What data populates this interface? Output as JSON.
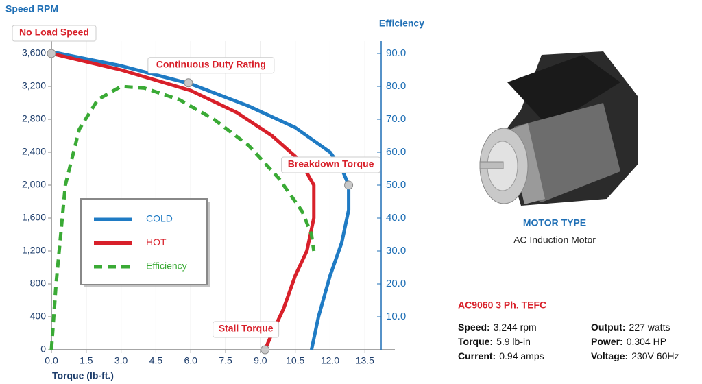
{
  "chart_data": {
    "type": "line",
    "y_axis_label": "Speed RPM",
    "y2_axis_label": "Efficiency",
    "x_axis_label": "Torque (lb-ft.)",
    "xlim": [
      0,
      14.2
    ],
    "xticks": [
      {
        "value": 0,
        "label": "0.0"
      },
      1.5,
      {
        "value": 3,
        "label": "3.0"
      },
      4.5,
      {
        "value": 6,
        "label": "6.0"
      },
      7.5,
      {
        "value": 9,
        "label": "9.0"
      },
      10.5,
      {
        "value": 12,
        "label": "12.0"
      },
      13.5
    ],
    "ylim": [
      0,
      3600
    ],
    "yticks": [
      0,
      400,
      800,
      {
        "value": 1200,
        "label": "1,200"
      },
      {
        "value": 1600,
        "label": "1,600"
      },
      {
        "value": 2000,
        "label": "2,000"
      },
      {
        "value": 2400,
        "label": "2,400"
      },
      {
        "value": 2800,
        "label": "2,800"
      },
      {
        "value": 3200,
        "label": "3,200"
      },
      {
        "value": 3600,
        "label": "3,600"
      }
    ],
    "y2lim": [
      0,
      90
    ],
    "y2ticks": [
      {
        "value": 10,
        "label": "10.0"
      },
      {
        "value": 20,
        "label": "20.0"
      },
      {
        "value": 30,
        "label": "30.0"
      },
      {
        "value": 40,
        "label": "40.0"
      },
      {
        "value": 50,
        "label": "50.0"
      },
      {
        "value": 60,
        "label": "60.0"
      },
      {
        "value": 70,
        "label": "70.0"
      },
      {
        "value": 80,
        "label": "80.0"
      },
      {
        "value": 90,
        "label": "90.0"
      }
    ],
    "grid": true,
    "series": [
      {
        "name": "COLD",
        "color": "#1f7bc4",
        "line_style": "solid",
        "x": [
          0,
          3,
          6,
          8.5,
          10.5,
          12,
          12.5,
          12.8,
          12.8,
          12.5,
          12,
          11.5,
          11.2
        ],
        "values": [
          3620,
          3450,
          3230,
          2960,
          2700,
          2400,
          2200,
          2000,
          1700,
          1300,
          900,
          400,
          0
        ]
      },
      {
        "name": "HOT",
        "color": "#d8202a",
        "line_style": "solid",
        "x": [
          0,
          3,
          6,
          8,
          9.5,
          10.7,
          11.3,
          11.3,
          11,
          10.5,
          10,
          9.5,
          9.2
        ],
        "values": [
          3600,
          3400,
          3150,
          2880,
          2600,
          2300,
          2000,
          1600,
          1200,
          900,
          500,
          200,
          0
        ]
      },
      {
        "name": "Efficiency",
        "color": "#3aaa35",
        "line_style": "dashed",
        "axis": "y2",
        "x": [
          0,
          0.2,
          0.6,
          1.2,
          2,
          3,
          4,
          5.5,
          7,
          8.5,
          9.8,
          10.8,
          11.2,
          11.3
        ],
        "values": [
          0,
          20,
          50,
          67,
          76,
          80,
          79.5,
          76,
          70,
          62,
          52,
          42,
          35,
          30
        ]
      }
    ],
    "annotations": [
      {
        "text": "No Load Speed",
        "x": 0,
        "y": 3600
      },
      {
        "text": "Continuous Duty Rating",
        "x": 5.9,
        "y": 3244
      },
      {
        "text": "Breakdown Torque",
        "x": 12.8,
        "y": 2000
      },
      {
        "text": "Stall Torque",
        "x": 9.2,
        "y": 0
      }
    ]
  },
  "product": {
    "motor_type_heading": "MOTOR TYPE",
    "motor_type": "AC Induction Motor",
    "model": "AC9060 3 Ph. TEFC",
    "specs": [
      {
        "label": "Speed:",
        "value": "3,244 rpm"
      },
      {
        "label": "Output:",
        "value": "227 watts"
      },
      {
        "label": "Torque:",
        "value": "5.9 lb-in"
      },
      {
        "label": "Power:",
        "value": "0.304 HP"
      },
      {
        "label": "Current:",
        "value": "0.94 amps"
      },
      {
        "label": "Voltage:",
        "value": "230V 60Hz"
      }
    ]
  }
}
